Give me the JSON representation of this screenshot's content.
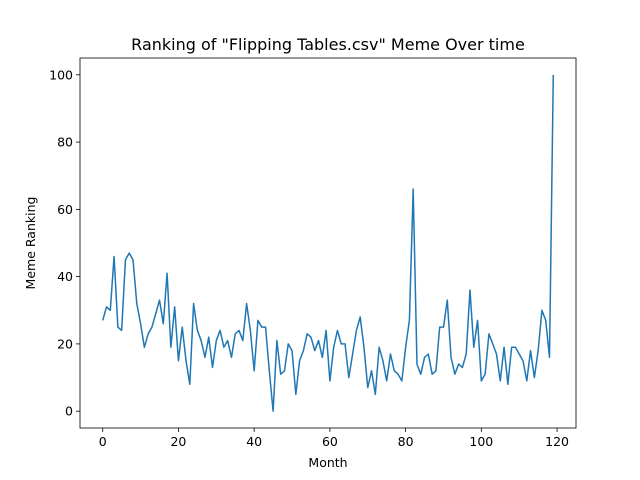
{
  "chart_data": {
    "type": "line",
    "title": "Ranking of \"Flipping Tables.csv\" Meme Over time",
    "xlabel": "Month",
    "ylabel": "Meme Ranking",
    "xlim": [
      -6,
      125
    ],
    "ylim": [
      -5,
      105
    ],
    "xticks": [
      0,
      20,
      40,
      60,
      80,
      100,
      120
    ],
    "yticks": [
      0,
      20,
      40,
      60,
      80,
      100
    ],
    "grid": false,
    "colors": {
      "line": "#1f77b4",
      "axes": "#000000"
    },
    "series": [
      {
        "x": [
          0,
          1,
          2,
          3,
          4,
          5,
          6,
          7,
          8,
          9,
          10,
          11,
          12,
          13,
          14,
          15,
          16,
          17,
          18,
          19,
          20,
          21,
          22,
          23,
          24,
          25,
          26,
          27,
          28,
          29,
          30,
          31,
          32,
          33,
          34,
          35,
          36,
          37,
          38,
          39,
          40,
          41,
          42,
          43,
          44,
          45,
          46,
          47,
          48,
          49,
          50,
          51,
          52,
          53,
          54,
          55,
          56,
          57,
          58,
          59,
          60,
          61,
          62,
          63,
          64,
          65,
          66,
          67,
          68,
          69,
          70,
          71,
          72,
          73,
          74,
          75,
          76,
          77,
          78,
          79,
          80,
          81,
          82,
          83,
          84,
          85,
          86,
          87,
          88,
          89,
          90,
          91,
          92,
          93,
          94,
          95,
          96,
          97,
          98,
          99,
          100,
          101,
          102,
          103,
          104,
          105,
          106,
          107,
          108,
          109,
          110,
          111,
          112,
          113,
          114,
          115,
          116,
          117,
          118,
          119
        ],
        "values": [
          27,
          31,
          30,
          46,
          25,
          24,
          45,
          47,
          45,
          32,
          26,
          19,
          23,
          25,
          29,
          33,
          26,
          41,
          19,
          31,
          15,
          25,
          15,
          8,
          32,
          24,
          21,
          16,
          22,
          13,
          21,
          24,
          19,
          21,
          16,
          23,
          24,
          21,
          32,
          24,
          12,
          27,
          25,
          25,
          12,
          0,
          21,
          11,
          12,
          20,
          18,
          5,
          15,
          18,
          23,
          22,
          18,
          21,
          16,
          24,
          9,
          19,
          24,
          20,
          20,
          10,
          17,
          24,
          28,
          19,
          7,
          12,
          5,
          19,
          15,
          9,
          17,
          12,
          11,
          9,
          19,
          27,
          66,
          14,
          11,
          16,
          17,
          11,
          12,
          25,
          25,
          33,
          16,
          11,
          14,
          13,
          17,
          36,
          19,
          27,
          9,
          11,
          23,
          20,
          17,
          9,
          19,
          8,
          19,
          19,
          17,
          15,
          9,
          18,
          10,
          18,
          30,
          27,
          16,
          100
        ]
      }
    ]
  }
}
